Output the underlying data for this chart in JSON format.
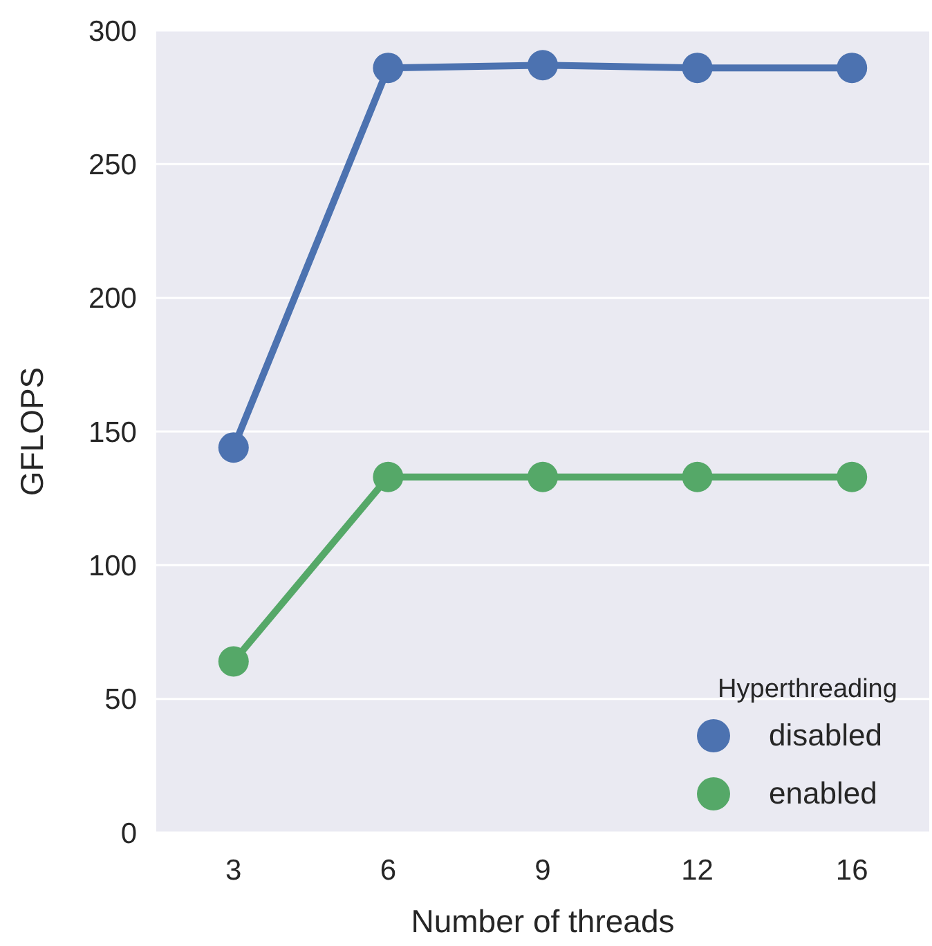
{
  "chart_data": {
    "type": "line",
    "xlabel": "Number of threads",
    "ylabel": "GFLOPS",
    "legend_title": "Hyperthreading",
    "categories": [
      "3",
      "6",
      "9",
      "12",
      "16"
    ],
    "series": [
      {
        "name": "disabled",
        "color": "#4c72b0",
        "values": [
          144,
          286,
          287,
          286,
          286
        ]
      },
      {
        "name": "enabled",
        "color": "#55a868",
        "values": [
          64,
          133,
          133,
          133,
          133
        ]
      }
    ],
    "ylim": [
      0,
      300
    ],
    "yticks": [
      0,
      50,
      100,
      150,
      200,
      250,
      300
    ],
    "grid": "y",
    "legend": "bottom right",
    "marker": "circle",
    "line_style": "solid"
  }
}
